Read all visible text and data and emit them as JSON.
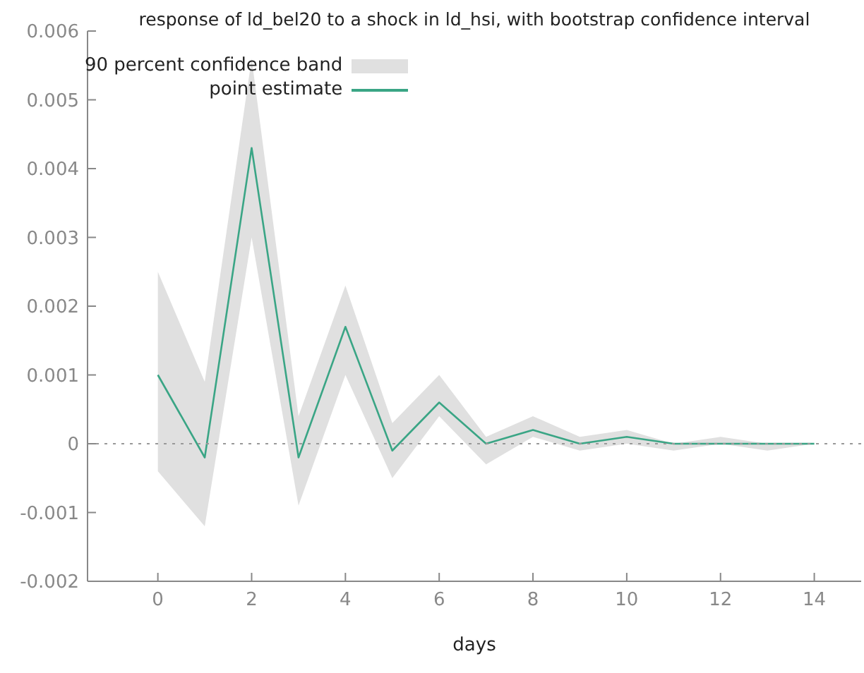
{
  "chart_data": {
    "type": "line",
    "title": "response of ld_bel20 to a shock in ld_hsi, with bootstrap confidence interval",
    "xlabel": "days",
    "x": [
      0,
      1,
      2,
      3,
      4,
      5,
      6,
      7,
      8,
      9,
      10,
      11,
      12,
      13,
      14
    ],
    "series": [
      {
        "name": "point estimate",
        "color": "#3aa585",
        "values": [
          0.001,
          -0.0002,
          0.0043,
          -0.0002,
          0.0017,
          -0.0001,
          0.0006,
          0,
          0.0002,
          0,
          0.0001,
          0,
          0,
          0,
          0
        ],
        "lower": [
          -0.0004,
          -0.0012,
          0.003,
          -0.0009,
          0.001,
          -0.0005,
          0.0004,
          -0.0003,
          0.0001,
          -0.0001,
          0,
          -0.0001,
          0,
          -0.0001,
          0
        ],
        "upper": [
          0.0025,
          0.0009,
          0.0056,
          0.0004,
          0.0023,
          0.0003,
          0.001,
          0.0001,
          0.0004,
          0.0001,
          0.0002,
          0,
          0.0001,
          0,
          0
        ]
      }
    ],
    "annotations": [
      "90 percent confidence band"
    ],
    "xlim": [
      -1.5,
      15
    ],
    "xticks": [
      0,
      2,
      4,
      6,
      8,
      10,
      12,
      14
    ],
    "ylim": [
      -0.002,
      0.006
    ],
    "yticks": [
      -0.002,
      -0.001,
      0,
      0.001,
      0.002,
      0.003,
      0.004,
      0.005,
      0.006
    ],
    "ref_lines": [
      {
        "axis": "y",
        "value": 0,
        "color": "#999999",
        "line_style": "dotted"
      }
    ],
    "grid": false,
    "legend": "top left",
    "marker": "none"
  }
}
